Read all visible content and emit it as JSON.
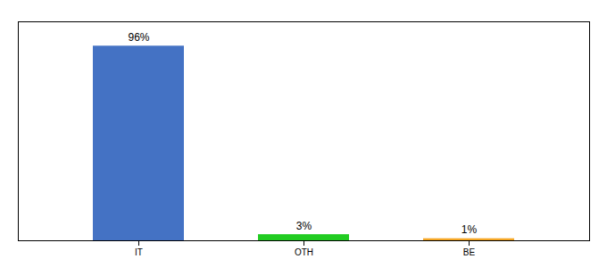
{
  "chart_data": {
    "type": "bar",
    "categories": [
      "IT",
      "OTH",
      "BE"
    ],
    "values": [
      96,
      3,
      1
    ],
    "value_labels": [
      "96%",
      "3%",
      "1%"
    ],
    "colors": [
      "#4472c4",
      "#22cc22",
      "#f5a623"
    ],
    "ylim": [
      0,
      108
    ],
    "yticks": [],
    "grid": false,
    "data_labels": true,
    "tick_labels": "x"
  }
}
